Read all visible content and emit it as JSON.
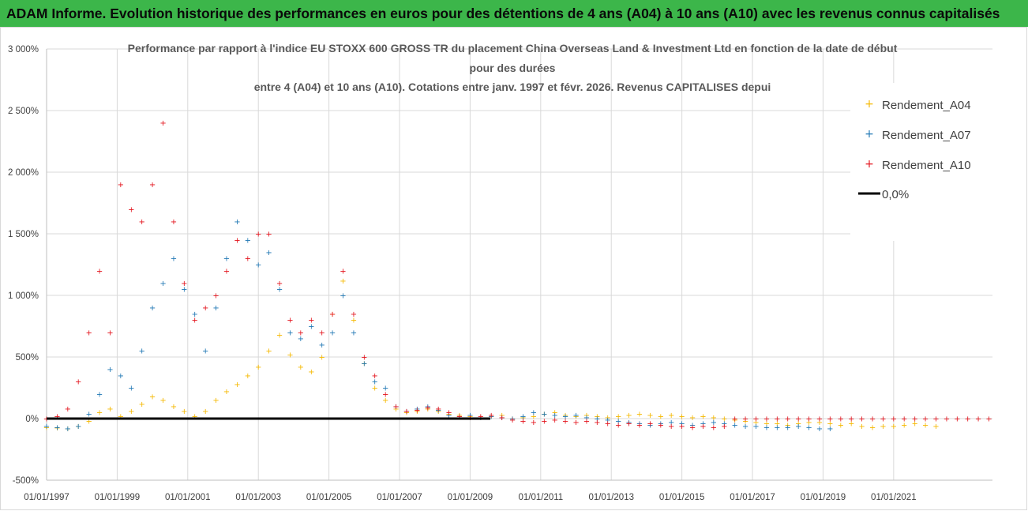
{
  "banner": {
    "title": "ADAM Informe. Evolution historique des performances en euros pour des détentions de 4 ans (A04) à 10 ans (A10) avec les revenus connus capitalisés"
  },
  "colors": {
    "banner_bg": "#3cb64a",
    "A04": "#f5b800",
    "A07": "#1f77b4",
    "A10": "#e3121b",
    "zero_line": "#000000",
    "grid": "#d9d9d9"
  },
  "chart_data": {
    "type": "scatter",
    "title_lines": [
      "Performance par rapport à l'indice EU STOXX 600 GROSS TR  du placement China Overseas Land & Investment Ltd en fonction de la date de début",
      "pour des durées",
      "entre 4 (A04) et 10 ans (A10). Cotations entre janv. 1997 et févr. 2026. Revenus CAPITALISES depui"
    ],
    "y_range": [
      -500,
      3000
    ],
    "y_ticks": [
      -500,
      0,
      500,
      1000,
      1500,
      2000,
      2500,
      3000
    ],
    "y_tick_labels": [
      "-500%",
      "0%",
      "500%",
      "1 000%",
      "1 500%",
      "2 000%",
      "2 500%",
      "3 000%"
    ],
    "x_range": [
      1997.0,
      2023.8
    ],
    "x_ticks": [
      1997,
      1999,
      2001,
      2003,
      2005,
      2007,
      2009,
      2011,
      2013,
      2015,
      2017,
      2019,
      2021
    ],
    "x_tick_labels": [
      "01/01/1997",
      "01/01/1999",
      "01/01/2001",
      "01/01/2003",
      "01/01/2005",
      "01/01/2007",
      "01/01/2009",
      "01/01/2011",
      "01/01/2013",
      "01/01/2015",
      "01/01/2017",
      "01/01/2019",
      "01/01/2021"
    ],
    "legend_position": "right",
    "marker": "+",
    "series": [
      {
        "name": "Rendement_A04",
        "color": "#f5b800",
        "x": [
          1997.0,
          1997.3,
          1997.6,
          1997.9,
          1998.2,
          1998.5,
          1998.8,
          1999.1,
          1999.4,
          1999.7,
          2000.0,
          2000.3,
          2000.6,
          2000.9,
          2001.2,
          2001.5,
          2001.8,
          2002.1,
          2002.4,
          2002.7,
          2003.0,
          2003.3,
          2003.6,
          2003.9,
          2004.2,
          2004.5,
          2004.8,
          2005.1,
          2005.4,
          2005.7,
          2006.0,
          2006.3,
          2006.6,
          2006.9,
          2007.2,
          2007.5,
          2007.8,
          2008.1,
          2008.4,
          2008.7,
          2009.0,
          2009.3,
          2009.6,
          2009.9,
          2010.2,
          2010.5,
          2010.8,
          2011.1,
          2011.4,
          2011.7,
          2012.0,
          2012.3,
          2012.6,
          2012.9,
          2013.2,
          2013.5,
          2013.8,
          2014.1,
          2014.4,
          2014.7,
          2015.0,
          2015.3,
          2015.6,
          2015.9,
          2016.2,
          2016.5,
          2016.8,
          2017.1,
          2017.4,
          2017.7,
          2018.0,
          2018.3,
          2018.6,
          2018.9,
          2019.2,
          2019.5,
          2019.8,
          2020.1,
          2020.4,
          2020.7,
          2021.0,
          2021.3,
          2021.6,
          2021.9,
          2022.2
        ],
        "values": [
          -70,
          -75,
          -80,
          -60,
          -20,
          50,
          80,
          20,
          60,
          120,
          180,
          150,
          100,
          60,
          20,
          60,
          150,
          220,
          280,
          350,
          420,
          550,
          680,
          520,
          420,
          380,
          500,
          850,
          1120,
          800,
          450,
          250,
          150,
          80,
          50,
          60,
          80,
          60,
          40,
          30,
          20,
          10,
          20,
          30,
          0,
          10,
          20,
          40,
          50,
          30,
          20,
          30,
          20,
          10,
          20,
          30,
          40,
          30,
          20,
          30,
          20,
          10,
          20,
          10,
          0,
          -10,
          -20,
          -30,
          -40,
          -40,
          -50,
          -40,
          -30,
          -30,
          -40,
          -50,
          -40,
          -60,
          -70,
          -60,
          -60,
          -50,
          -40,
          -50,
          -60
        ]
      },
      {
        "name": "Rendement_A07",
        "color": "#1f77b4",
        "x": [
          1997.0,
          1997.3,
          1997.6,
          1997.9,
          1998.2,
          1998.5,
          1998.8,
          1999.1,
          1999.4,
          1999.7,
          2000.0,
          2000.3,
          2000.6,
          2000.9,
          2001.2,
          2001.5,
          2001.8,
          2002.1,
          2002.4,
          2002.7,
          2003.0,
          2003.3,
          2003.6,
          2003.9,
          2004.2,
          2004.5,
          2004.8,
          2005.1,
          2005.4,
          2005.7,
          2006.0,
          2006.3,
          2006.6,
          2006.9,
          2007.2,
          2007.5,
          2007.8,
          2008.1,
          2008.4,
          2008.7,
          2009.0,
          2009.3,
          2009.6,
          2009.9,
          2010.2,
          2010.5,
          2010.8,
          2011.1,
          2011.4,
          2011.7,
          2012.0,
          2012.3,
          2012.6,
          2012.9,
          2013.2,
          2013.5,
          2013.8,
          2014.1,
          2014.4,
          2014.7,
          2015.0,
          2015.3,
          2015.6,
          2015.9,
          2016.2,
          2016.5,
          2016.8,
          2017.1,
          2017.4,
          2017.7,
          2018.0,
          2018.3,
          2018.6,
          2018.9,
          2019.2
        ],
        "values": [
          -60,
          -70,
          -80,
          -60,
          40,
          200,
          400,
          350,
          250,
          550,
          900,
          1100,
          1300,
          1050,
          850,
          550,
          900,
          1300,
          1600,
          1450,
          1250,
          1350,
          1050,
          700,
          650,
          750,
          600,
          700,
          1000,
          700,
          450,
          300,
          250,
          100,
          60,
          80,
          100,
          70,
          30,
          20,
          30,
          10,
          20,
          10,
          0,
          20,
          50,
          40,
          30,
          20,
          30,
          10,
          0,
          -10,
          -20,
          -30,
          -40,
          -50,
          -40,
          -30,
          -40,
          -50,
          -40,
          -30,
          -40,
          -50,
          -60,
          -60,
          -70,
          -70,
          -70,
          -60,
          -70,
          -80,
          -80
        ]
      },
      {
        "name": "Rendement_A10",
        "color": "#e3121b",
        "x": [
          1997.0,
          1997.3,
          1997.6,
          1997.9,
          1998.2,
          1998.5,
          1998.8,
          1999.1,
          1999.4,
          1999.7,
          2000.0,
          2000.3,
          2000.6,
          2000.9,
          2001.2,
          2001.5,
          2001.8,
          2002.1,
          2002.4,
          2002.7,
          2003.0,
          2003.3,
          2003.6,
          2003.9,
          2004.2,
          2004.5,
          2004.8,
          2005.1,
          2005.4,
          2005.7,
          2006.0,
          2006.3,
          2006.6,
          2006.9,
          2007.2,
          2007.5,
          2007.8,
          2008.1,
          2008.4,
          2008.7,
          2009.0,
          2009.3,
          2009.6,
          2009.9,
          2010.2,
          2010.5,
          2010.8,
          2011.1,
          2011.4,
          2011.7,
          2012.0,
          2012.3,
          2012.6,
          2012.9,
          2013.2,
          2013.5,
          2013.8,
          2014.1,
          2014.4,
          2014.7,
          2015.0,
          2015.3,
          2015.6,
          2015.9,
          2016.2,
          2016.5,
          2016.8,
          2017.1,
          2017.4,
          2017.7,
          2018.0,
          2018.3,
          2018.6,
          2018.9,
          2019.2,
          2019.5,
          2019.8,
          2020.1,
          2020.4,
          2020.7,
          2021.0,
          2021.3,
          2021.6,
          2021.9,
          2022.2,
          2022.5,
          2022.8,
          2023.1,
          2023.4,
          2023.7
        ],
        "values": [
          0,
          20,
          80,
          300,
          700,
          1200,
          700,
          1900,
          1700,
          1600,
          1900,
          2400,
          1600,
          1100,
          800,
          900,
          1000,
          1200,
          1450,
          1300,
          1500,
          1500,
          1100,
          800,
          700,
          800,
          700,
          850,
          1200,
          850,
          500,
          350,
          200,
          100,
          60,
          70,
          90,
          80,
          50,
          20,
          10,
          20,
          30,
          10,
          -10,
          -20,
          -30,
          -20,
          -10,
          -20,
          -30,
          -20,
          -30,
          -40,
          -50,
          -40,
          -50,
          -40,
          -50,
          -60,
          -60,
          -70,
          -60,
          -70,
          -60,
          0,
          0,
          0,
          0,
          0,
          0,
          0,
          0,
          0,
          0,
          0,
          0,
          0,
          0,
          0,
          0,
          0,
          0,
          0,
          0,
          0,
          0,
          0,
          0,
          0
        ]
      }
    ],
    "reference_line": {
      "name": "0,0%",
      "value": 0
    }
  }
}
